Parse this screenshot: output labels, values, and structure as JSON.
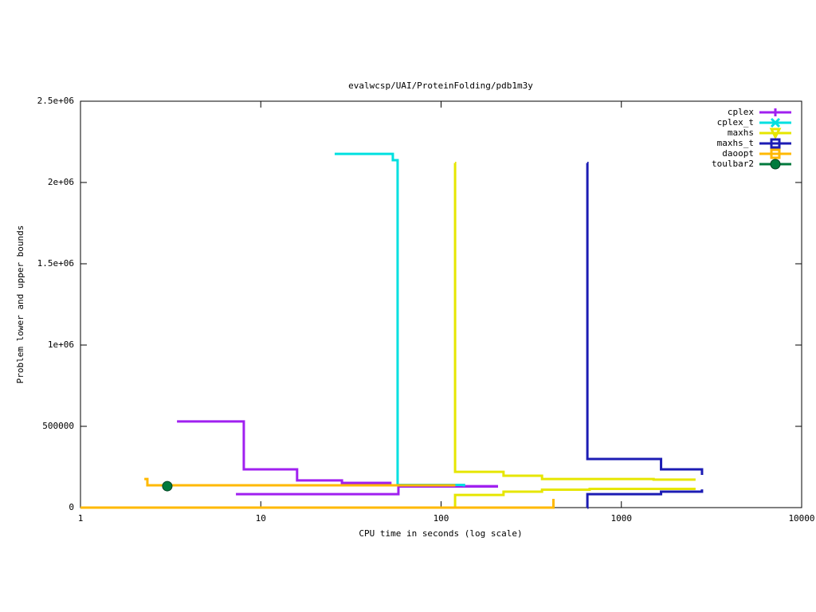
{
  "chart_data": {
    "type": "line",
    "title": "evalwcsp/UAI/ProteinFolding/pdb1m3y",
    "x_label": "CPU time in seconds (log scale)",
    "y_label": "Problem lower and upper bounds",
    "x_log": true,
    "xlim": [
      1,
      10000
    ],
    "xticks": [
      1,
      10,
      100,
      1000,
      10000
    ],
    "ylim": [
      0,
      2500000
    ],
    "yticks": [
      0,
      500000,
      {
        "value": 1000000,
        "label": "1e+06"
      },
      {
        "value": 1500000,
        "label": "1.5e+06"
      },
      {
        "value": 2000000,
        "label": "2e+06"
      },
      {
        "value": 2500000,
        "label": "2.5e+06"
      }
    ],
    "legend": "top-right",
    "series": [
      {
        "name": "cplex",
        "color": "#a020f0",
        "marker": "plus",
        "x": [
          3.43,
          8.05,
          15.9,
          28.2,
          52.3,
          91.6,
          207,
          null,
          7.28,
          58,
          207
        ],
        "values": [
          530000,
          235000,
          167000,
          152000,
          137000,
          132000,
          132000,
          null,
          83000,
          130000,
          130000
        ]
      },
      {
        "name": "cplex_t",
        "color": "#00e0e0",
        "marker": "cross",
        "x": [
          25.7,
          54,
          57.4,
          134
        ],
        "values": [
          2176000,
          2137000,
          140000,
          130000
        ]
      },
      {
        "name": "maxhs",
        "color": "#e6e600",
        "marker": "triangle",
        "x": [
          119.5,
          119.6,
          222,
          363,
          1510,
          2580,
          null,
          119.5,
          119.6,
          222,
          363,
          667,
          2580
        ],
        "values": [
          2120000,
          220000,
          196000,
          176000,
          172000,
          172000,
          null,
          0,
          78000,
          98000,
          110000,
          115000,
          115000
        ]
      },
      {
        "name": "maxhs_t",
        "color": "#1c1cb4",
        "marker": "square",
        "x": [
          647,
          648,
          1660,
          2800,
          2801,
          null,
          647,
          648,
          1660,
          2800
        ],
        "values": [
          2120000,
          299000,
          235000,
          235000,
          201000,
          null,
          0,
          83000,
          98000,
          112000
        ]
      },
      {
        "name": "daoopt",
        "color": "#ffb900",
        "marker": "square",
        "x": [
          2.26,
          2.35,
          120,
          null,
          1,
          419,
          420
        ],
        "values": [
          176000,
          137000,
          137000,
          null,
          0,
          0,
          54000
        ]
      },
      {
        "name": "toulbar2",
        "color": "#007a3d",
        "marker": "circle",
        "style": "points",
        "x": [
          3.03
        ],
        "values": [
          132000
        ]
      }
    ]
  }
}
